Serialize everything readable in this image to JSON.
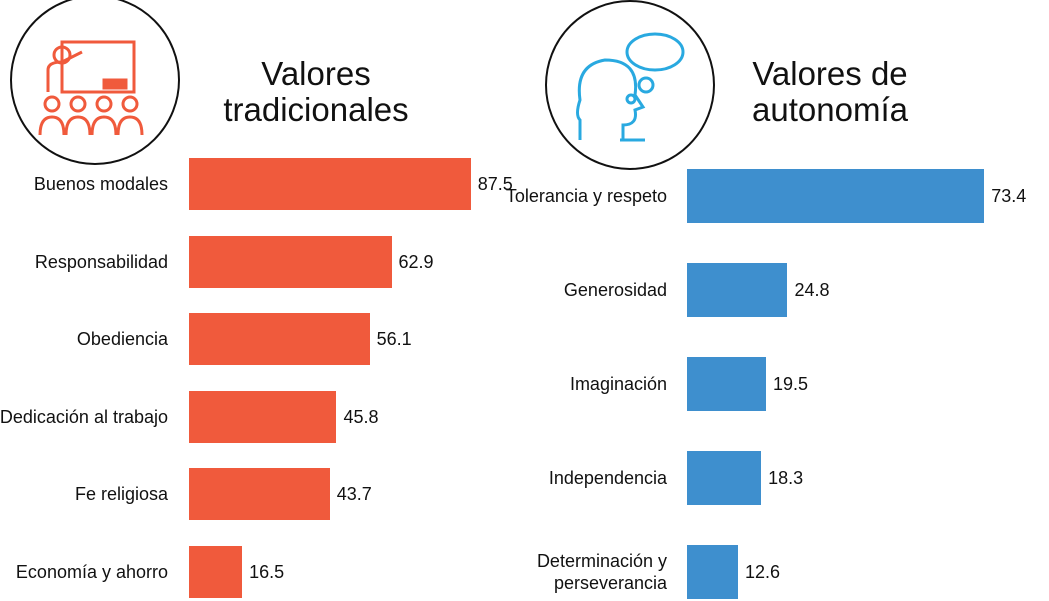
{
  "chart_data": [
    {
      "type": "hbar",
      "title": "Valores tradicionales",
      "color": "#f05a3c",
      "categories": [
        "Buenos modales",
        "Responsabilidad",
        "Obediencia",
        "Dedicación al trabajo",
        "Fe religiosa",
        "Economía y ahorro"
      ],
      "values": [
        87.5,
        62.9,
        56.1,
        45.8,
        43.7,
        16.5
      ]
    },
    {
      "type": "hbar",
      "title": "Valores de autonomía",
      "color": "#3e8fce",
      "categories": [
        "Tolerancia y respeto",
        "Generosidad",
        "Imaginación",
        "Independencia",
        "Determinación y perseverancia"
      ],
      "values": [
        73.4,
        24.8,
        19.5,
        18.3,
        12.6
      ]
    }
  ]
}
